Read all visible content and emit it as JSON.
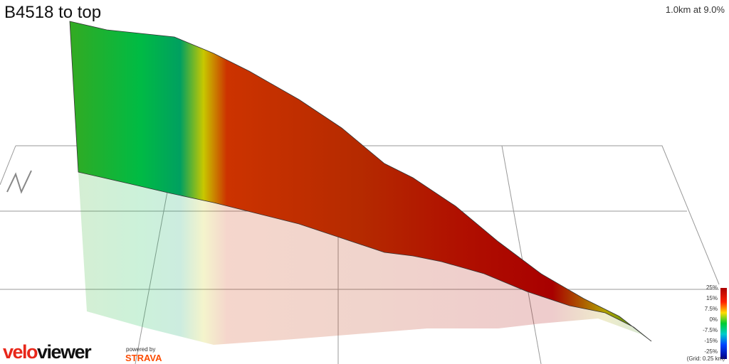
{
  "header": {
    "title": "B4518 to top",
    "stat": "1.0km at 9.0%"
  },
  "legend": {
    "labels": [
      "25%",
      "15%",
      "7.5%",
      "0%",
      "-7.5%",
      "-15%",
      "-25%"
    ],
    "grid_note": "(Grid: 0.25 km)"
  },
  "branding": {
    "logo": "veloviewer",
    "powered": "powered by",
    "partner": "STRAVA"
  }
}
